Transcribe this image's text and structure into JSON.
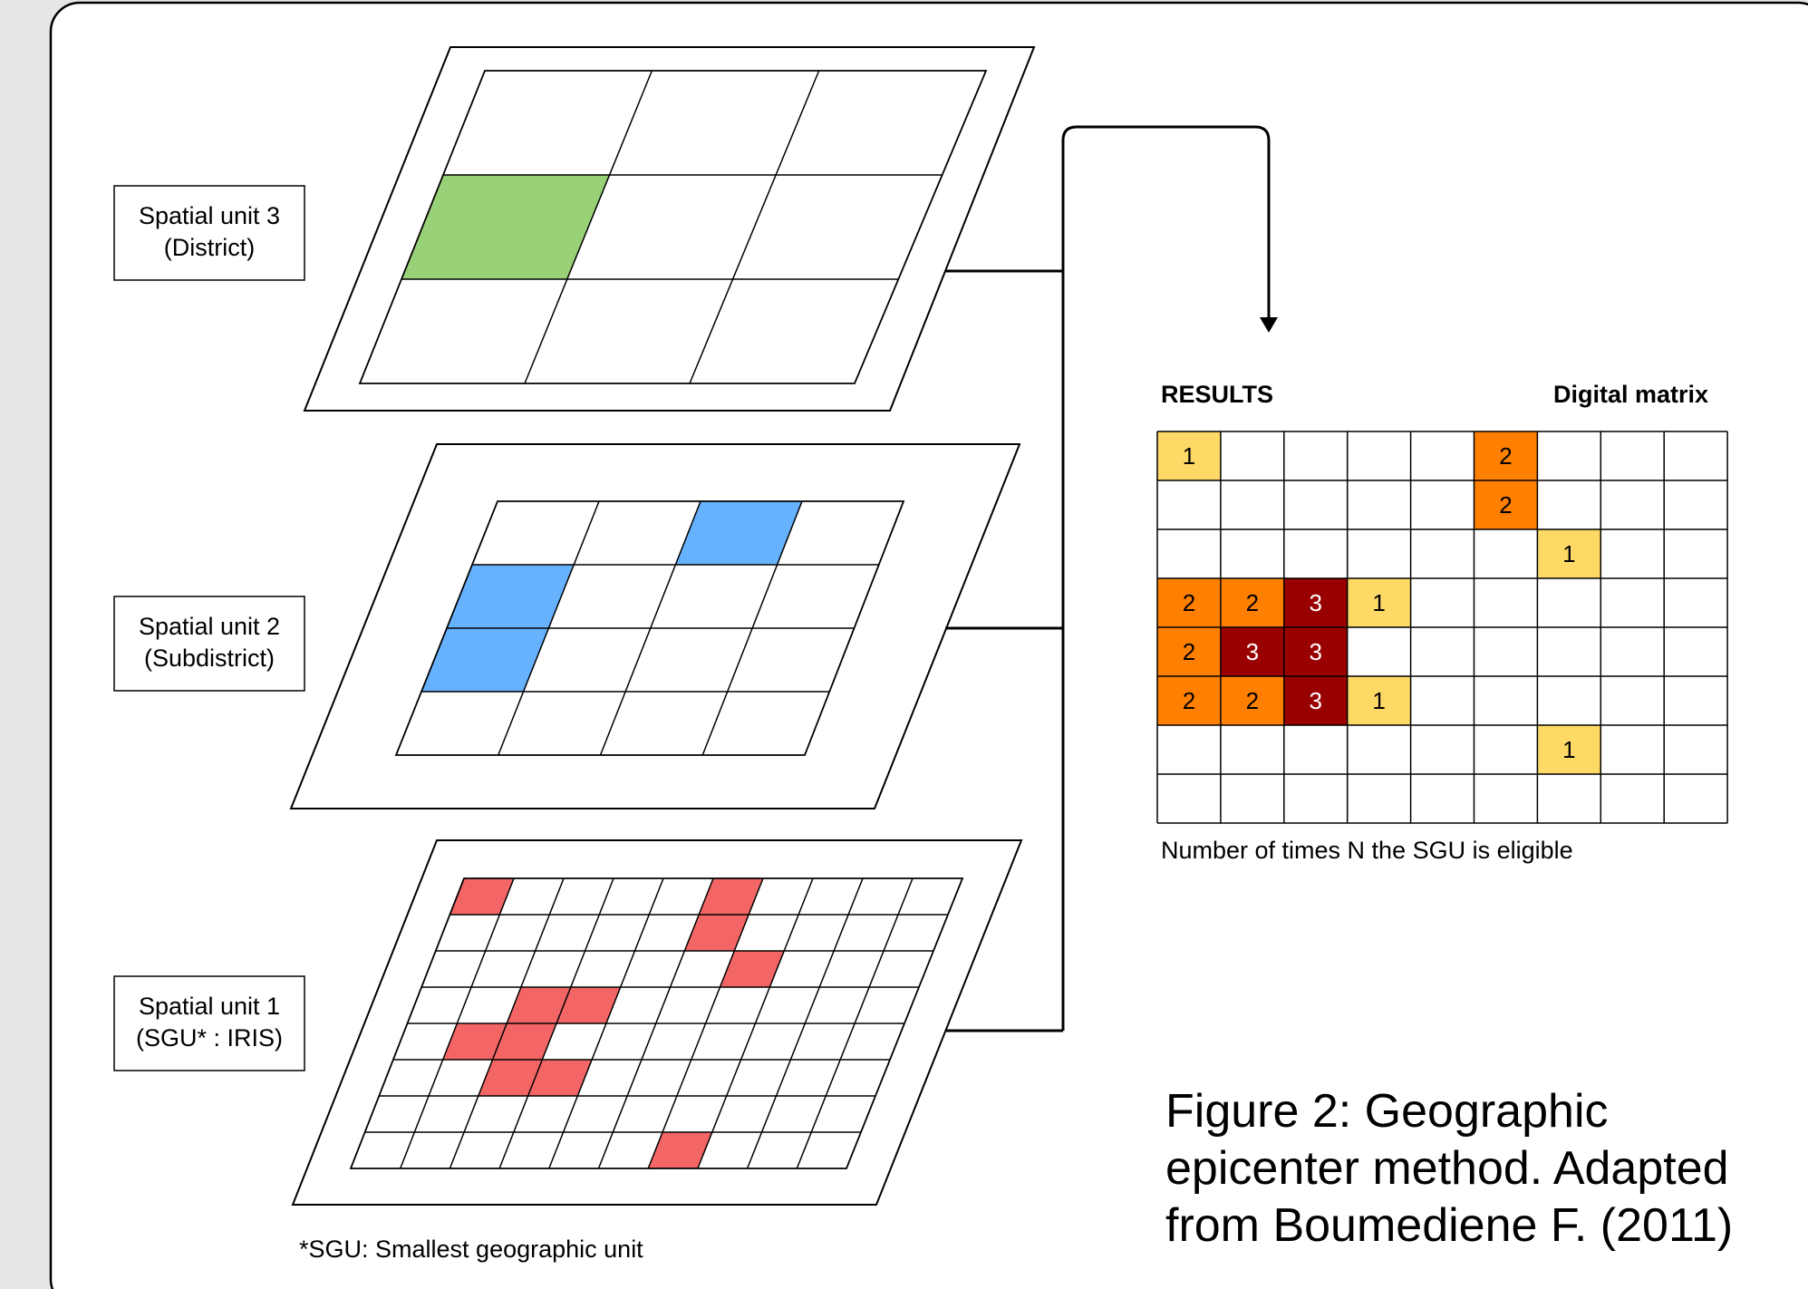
{
  "units": [
    {
      "line1": "Spatial unit 3",
      "line2": "(District)",
      "rows": 3,
      "cols": 3,
      "highlight_color": "#98d178",
      "highlighted_cells": [
        [
          1,
          0
        ]
      ]
    },
    {
      "line1": "Spatial unit 2",
      "line2": "(Subdistrict)",
      "rows": 4,
      "cols": 4,
      "highlight_color": "#66b2ff",
      "highlighted_cells": [
        [
          0,
          2
        ],
        [
          1,
          0
        ],
        [
          2,
          0
        ]
      ]
    },
    {
      "line1": "Spatial unit 1",
      "line2": "(SGU* : IRIS)",
      "rows": 8,
      "cols": 10,
      "highlight_color": "#f46666",
      "highlighted_cells": [
        [
          0,
          0
        ],
        [
          0,
          5
        ],
        [
          1,
          5
        ],
        [
          2,
          6
        ],
        [
          3,
          2
        ],
        [
          3,
          3
        ],
        [
          4,
          1
        ],
        [
          4,
          2
        ],
        [
          5,
          2
        ],
        [
          5,
          3
        ],
        [
          7,
          6
        ]
      ]
    }
  ],
  "footnote": "*SGU: Smallest geographic unit",
  "results": {
    "title": "RESULTS",
    "matrix_title": "Digital matrix",
    "rows": 8,
    "cols": 9,
    "cells": [
      {
        "r": 0,
        "c": 0,
        "v": "1"
      },
      {
        "r": 0,
        "c": 5,
        "v": "2"
      },
      {
        "r": 1,
        "c": 5,
        "v": "2"
      },
      {
        "r": 2,
        "c": 6,
        "v": "1"
      },
      {
        "r": 3,
        "c": 0,
        "v": "2"
      },
      {
        "r": 3,
        "c": 1,
        "v": "2"
      },
      {
        "r": 3,
        "c": 2,
        "v": "3"
      },
      {
        "r": 3,
        "c": 3,
        "v": "1"
      },
      {
        "r": 4,
        "c": 0,
        "v": "2"
      },
      {
        "r": 4,
        "c": 1,
        "v": "3"
      },
      {
        "r": 4,
        "c": 2,
        "v": "3"
      },
      {
        "r": 5,
        "c": 0,
        "v": "2"
      },
      {
        "r": 5,
        "c": 1,
        "v": "2"
      },
      {
        "r": 5,
        "c": 2,
        "v": "3"
      },
      {
        "r": 5,
        "c": 3,
        "v": "1"
      },
      {
        "r": 6,
        "c": 6,
        "v": "1"
      }
    ],
    "value_colors": {
      "1": "#ffd966",
      "2": "#ff8000",
      "3": "#990000"
    },
    "value_text_colors": {
      "1": "#000000",
      "2": "#000000",
      "3": "#ffffff"
    },
    "caption": "Number of times N the SGU is eligible"
  },
  "figure_caption": {
    "line1": "Figure 2: Geographic",
    "line2": "epicenter method. Adapted",
    "line3": "from Boumediene F. (2011)"
  }
}
